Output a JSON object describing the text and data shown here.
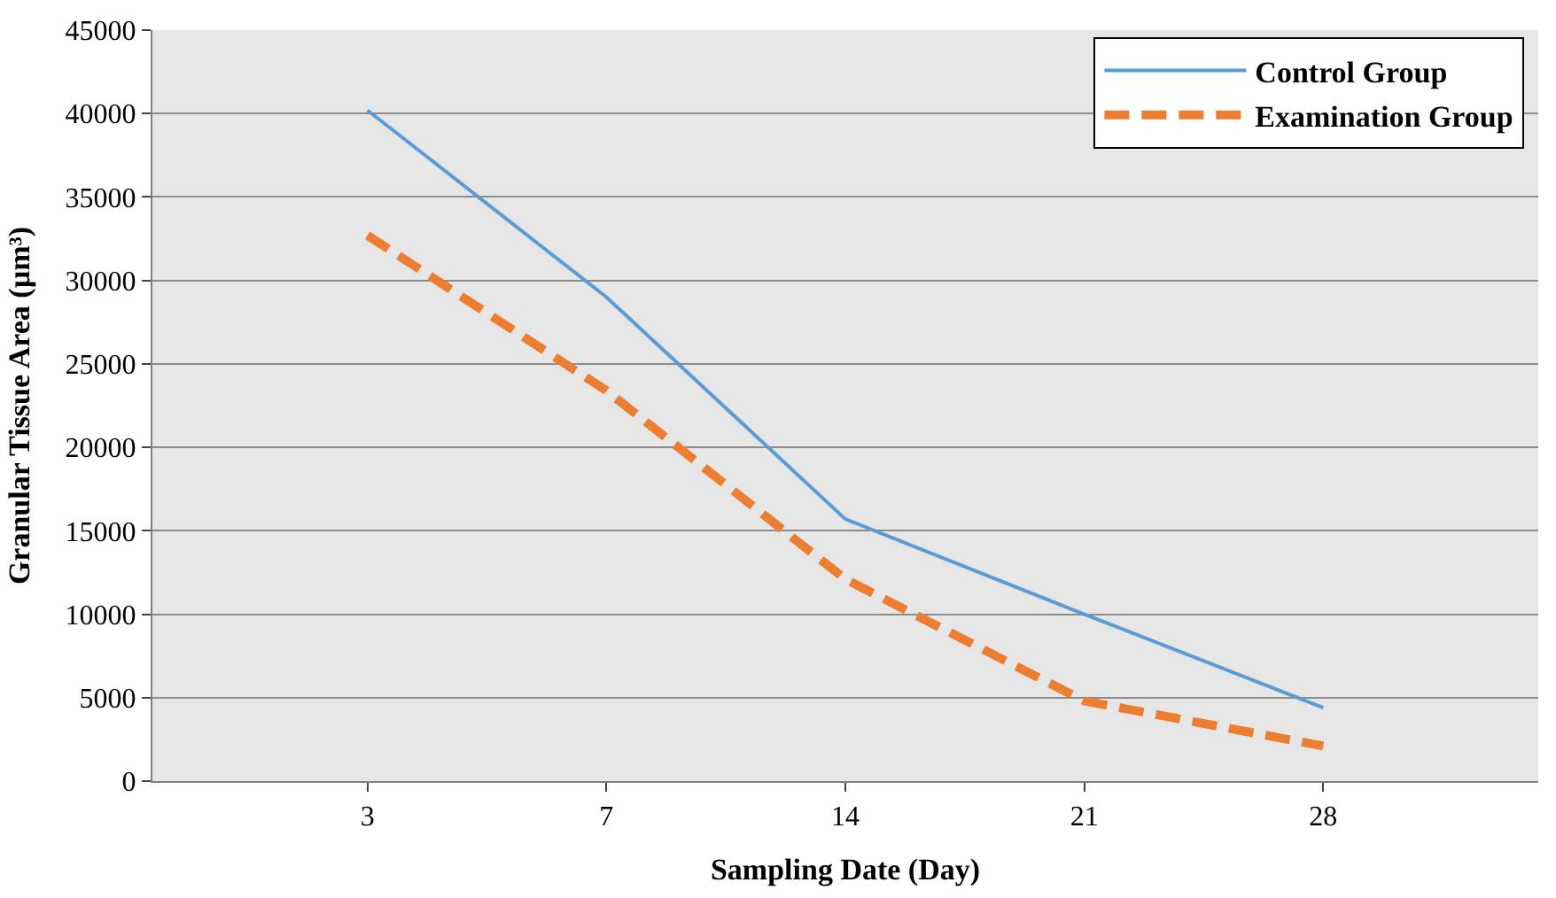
{
  "chart_data": {
    "type": "line",
    "xlabel": "Sampling Date (Day)",
    "ylabel": "Granular Tissue Area (µm³)",
    "categories": [
      "3",
      "7",
      "14",
      "21",
      "28"
    ],
    "series": [
      {
        "name": "Control Group",
        "color": "#5b9bd5",
        "values": [
          40200,
          29000,
          15700,
          10000,
          4400
        ],
        "line_style": "solid"
      },
      {
        "name": "Examination Group",
        "color": "#ed7d31",
        "values": [
          32700,
          23400,
          12100,
          4800,
          2100
        ],
        "line_style": "dashed"
      }
    ],
    "ylim": [
      0,
      45000
    ],
    "yticks": [
      0,
      5000,
      10000,
      15000,
      20000,
      25000,
      30000,
      35000,
      40000,
      45000
    ],
    "grid": "y",
    "legend": "top right",
    "marker": "none"
  }
}
